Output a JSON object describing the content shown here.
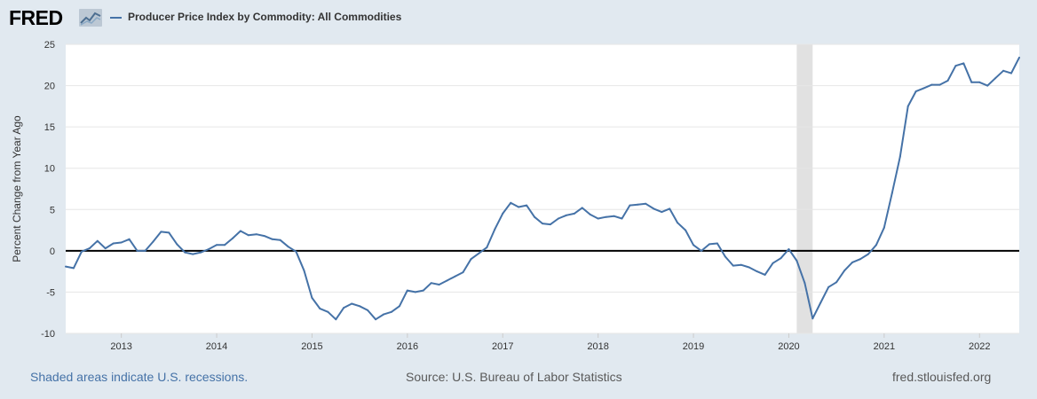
{
  "header": {
    "logo_text": "FRED",
    "legend_label": "Producer Price Index by Commodity: All Commodities"
  },
  "footer": {
    "recession_note": "Shaded areas indicate U.S. recessions.",
    "source": "Source: U.S. Bureau of Labor Statistics",
    "site": "fred.stlouisfed.org"
  },
  "colors": {
    "background": "#e1e9f0",
    "plot_background": "#ffffff",
    "series": "#4572a7",
    "recession_shade": "#e1e1e1",
    "gridline": "#e6e6e6",
    "zero_line": "#000000"
  },
  "icons": {
    "logo_graph": "line-graph-icon"
  },
  "chart_data": {
    "type": "line",
    "title": "",
    "xlabel": "",
    "ylabel": "Percent Change from Year Ago",
    "ylim": [
      -10,
      25
    ],
    "xlim": [
      "2012-06",
      "2022-06"
    ],
    "yticks": [
      "-10",
      "-5",
      "0",
      "5",
      "10",
      "15",
      "20",
      "25"
    ],
    "xticks": [
      "2013",
      "2014",
      "2015",
      "2016",
      "2017",
      "2018",
      "2019",
      "2020",
      "2021",
      "2022"
    ],
    "grid": true,
    "legend": "top-left",
    "recessions": [
      {
        "start": "2020-02",
        "end": "2020-04"
      }
    ],
    "series": [
      {
        "name": "Producer Price Index by Commodity: All Commodities",
        "x": [
          "2012-06",
          "2012-07",
          "2012-08",
          "2012-09",
          "2012-10",
          "2012-11",
          "2012-12",
          "2013-01",
          "2013-02",
          "2013-03",
          "2013-04",
          "2013-05",
          "2013-06",
          "2013-07",
          "2013-08",
          "2013-09",
          "2013-10",
          "2013-11",
          "2013-12",
          "2014-01",
          "2014-02",
          "2014-03",
          "2014-04",
          "2014-05",
          "2014-06",
          "2014-07",
          "2014-08",
          "2014-09",
          "2014-10",
          "2014-11",
          "2014-12",
          "2015-01",
          "2015-02",
          "2015-03",
          "2015-04",
          "2015-05",
          "2015-06",
          "2015-07",
          "2015-08",
          "2015-09",
          "2015-10",
          "2015-11",
          "2015-12",
          "2016-01",
          "2016-02",
          "2016-03",
          "2016-04",
          "2016-05",
          "2016-06",
          "2016-07",
          "2016-08",
          "2016-09",
          "2016-10",
          "2016-11",
          "2016-12",
          "2017-01",
          "2017-02",
          "2017-03",
          "2017-04",
          "2017-05",
          "2017-06",
          "2017-07",
          "2017-08",
          "2017-09",
          "2017-10",
          "2017-11",
          "2017-12",
          "2018-01",
          "2018-02",
          "2018-03",
          "2018-04",
          "2018-05",
          "2018-06",
          "2018-07",
          "2018-08",
          "2018-09",
          "2018-10",
          "2018-11",
          "2018-12",
          "2019-01",
          "2019-02",
          "2019-03",
          "2019-04",
          "2019-05",
          "2019-06",
          "2019-07",
          "2019-08",
          "2019-09",
          "2019-10",
          "2019-11",
          "2019-12",
          "2020-01",
          "2020-02",
          "2020-03",
          "2020-04",
          "2020-05",
          "2020-06",
          "2020-07",
          "2020-08",
          "2020-09",
          "2020-10",
          "2020-11",
          "2020-12",
          "2021-01",
          "2021-02",
          "2021-03",
          "2021-04",
          "2021-05",
          "2021-06",
          "2021-07",
          "2021-08",
          "2021-09",
          "2021-10",
          "2021-11",
          "2021-12",
          "2022-01",
          "2022-02",
          "2022-03",
          "2022-04",
          "2022-05",
          "2022-06"
        ],
        "values": [
          -1.9,
          -2.1,
          -0.1,
          0.3,
          1.2,
          0.3,
          0.9,
          1.0,
          1.4,
          0.0,
          0.0,
          1.1,
          2.3,
          2.2,
          0.8,
          -0.2,
          -0.4,
          -0.2,
          0.2,
          0.7,
          0.7,
          1.5,
          2.4,
          1.9,
          2.0,
          1.8,
          1.4,
          1.3,
          0.5,
          -0.1,
          -2.4,
          -5.7,
          -7.0,
          -7.4,
          -8.3,
          -6.9,
          -6.4,
          -6.7,
          -7.2,
          -8.3,
          -7.7,
          -7.4,
          -6.7,
          -4.8,
          -5.0,
          -4.8,
          -3.9,
          -4.1,
          -3.6,
          -3.1,
          -2.6,
          -1.0,
          -0.3,
          0.4,
          2.6,
          4.5,
          5.8,
          5.3,
          5.5,
          4.1,
          3.3,
          3.2,
          3.9,
          4.3,
          4.5,
          5.2,
          4.4,
          3.9,
          4.1,
          4.2,
          3.9,
          5.5,
          5.6,
          5.7,
          5.1,
          4.7,
          5.1,
          3.4,
          2.5,
          0.7,
          0.0,
          0.8,
          0.9,
          -0.7,
          -1.8,
          -1.7,
          -2.0,
          -2.5,
          -2.9,
          -1.5,
          -0.9,
          0.2,
          -1.2,
          -3.9,
          -8.2,
          -6.3,
          -4.4,
          -3.8,
          -2.4,
          -1.4,
          -1.0,
          -0.4,
          0.7,
          2.8,
          7.0,
          11.4,
          17.5,
          19.3,
          19.7,
          20.1,
          20.1,
          20.6,
          22.4,
          22.7,
          20.4,
          20.4,
          20.0,
          20.9,
          21.8,
          21.5,
          23.4
        ]
      }
    ]
  }
}
